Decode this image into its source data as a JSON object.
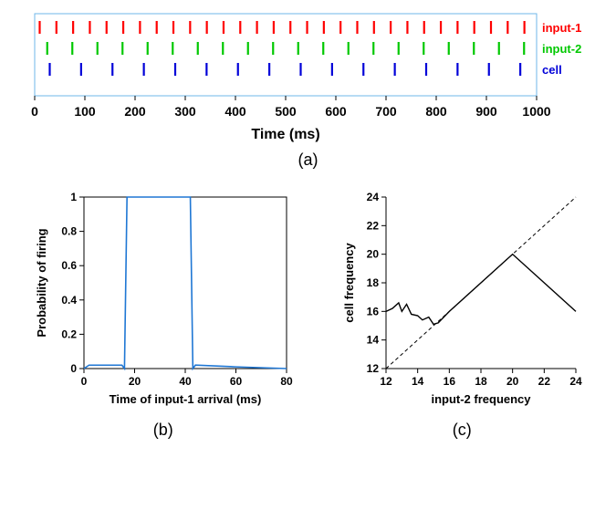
{
  "panel_a": {
    "type": "raster",
    "xlim": [
      0,
      1000
    ],
    "xlabel": "Time (ms)",
    "label_fontsize": 16,
    "label_fontweight": "bold",
    "tick_fontsize": 14,
    "tick_fontweight": "bold",
    "xtick_step": 100,
    "rows": [
      {
        "label": "input-1",
        "color": "#ff0000",
        "period": 33.3,
        "offset": 10,
        "n": 30,
        "y": 15
      },
      {
        "label": "input-2",
        "color": "#00c800",
        "period": 50.0,
        "offset": 25,
        "n": 20,
        "y": 38
      },
      {
        "label": "cell",
        "color": "#0000d8",
        "period": 62.5,
        "offset": 30,
        "n": 16,
        "y": 61
      }
    ],
    "tick_height": 14,
    "tick_width": 2.2,
    "border_color": "#6fb7e8",
    "caption": "(a)"
  },
  "panel_b": {
    "type": "line",
    "xlim": [
      0,
      80
    ],
    "ylim": [
      0,
      1
    ],
    "xlabel": "Time of input-1 arrival (ms)",
    "ylabel": "Probability of firing",
    "label_fontsize": 13,
    "label_fontweight": "bold",
    "tick_fontsize": 12,
    "tick_fontweight": "bold",
    "xticks": [
      0,
      20,
      40,
      60,
      80
    ],
    "yticks": [
      0,
      0.2,
      0.4,
      0.6,
      0.8,
      1
    ],
    "line_color": "#1f77d4",
    "line_width": 1.6,
    "points": [
      [
        0,
        0
      ],
      [
        2,
        0.02
      ],
      [
        15,
        0.02
      ],
      [
        16,
        0
      ],
      [
        17,
        1
      ],
      [
        18,
        1
      ],
      [
        40,
        1
      ],
      [
        42,
        1
      ],
      [
        43,
        0
      ],
      [
        44,
        0.02
      ],
      [
        60,
        0.01
      ],
      [
        80,
        0
      ]
    ],
    "box_color": "#000000",
    "caption": "(b)"
  },
  "panel_c": {
    "type": "line",
    "xlim": [
      12,
      24
    ],
    "ylim": [
      12,
      24
    ],
    "xlabel": "input-2 frequency",
    "ylabel": "cell frequency",
    "label_fontsize": 13,
    "label_fontweight": "bold",
    "tick_fontsize": 12,
    "tick_fontweight": "bold",
    "xticks": [
      12,
      14,
      16,
      18,
      20,
      22,
      24
    ],
    "yticks": [
      12,
      14,
      16,
      18,
      20,
      22,
      24
    ],
    "diag_dash": "4,3",
    "diag_color": "#000000",
    "line_color": "#000000",
    "line_width": 1.4,
    "points": [
      [
        12,
        16.0
      ],
      [
        12.4,
        16.2
      ],
      [
        12.8,
        16.6
      ],
      [
        13.0,
        16.0
      ],
      [
        13.3,
        16.5
      ],
      [
        13.6,
        15.8
      ],
      [
        14.0,
        15.7
      ],
      [
        14.3,
        15.4
      ],
      [
        14.7,
        15.6
      ],
      [
        15.0,
        15.1
      ],
      [
        15.3,
        15.2
      ],
      [
        16.0,
        16.0
      ],
      [
        18.0,
        18.0
      ],
      [
        20.0,
        20.0
      ],
      [
        22.0,
        18.0
      ],
      [
        24.0,
        16.0
      ]
    ],
    "box_color": "#000000",
    "caption": "(c)"
  }
}
